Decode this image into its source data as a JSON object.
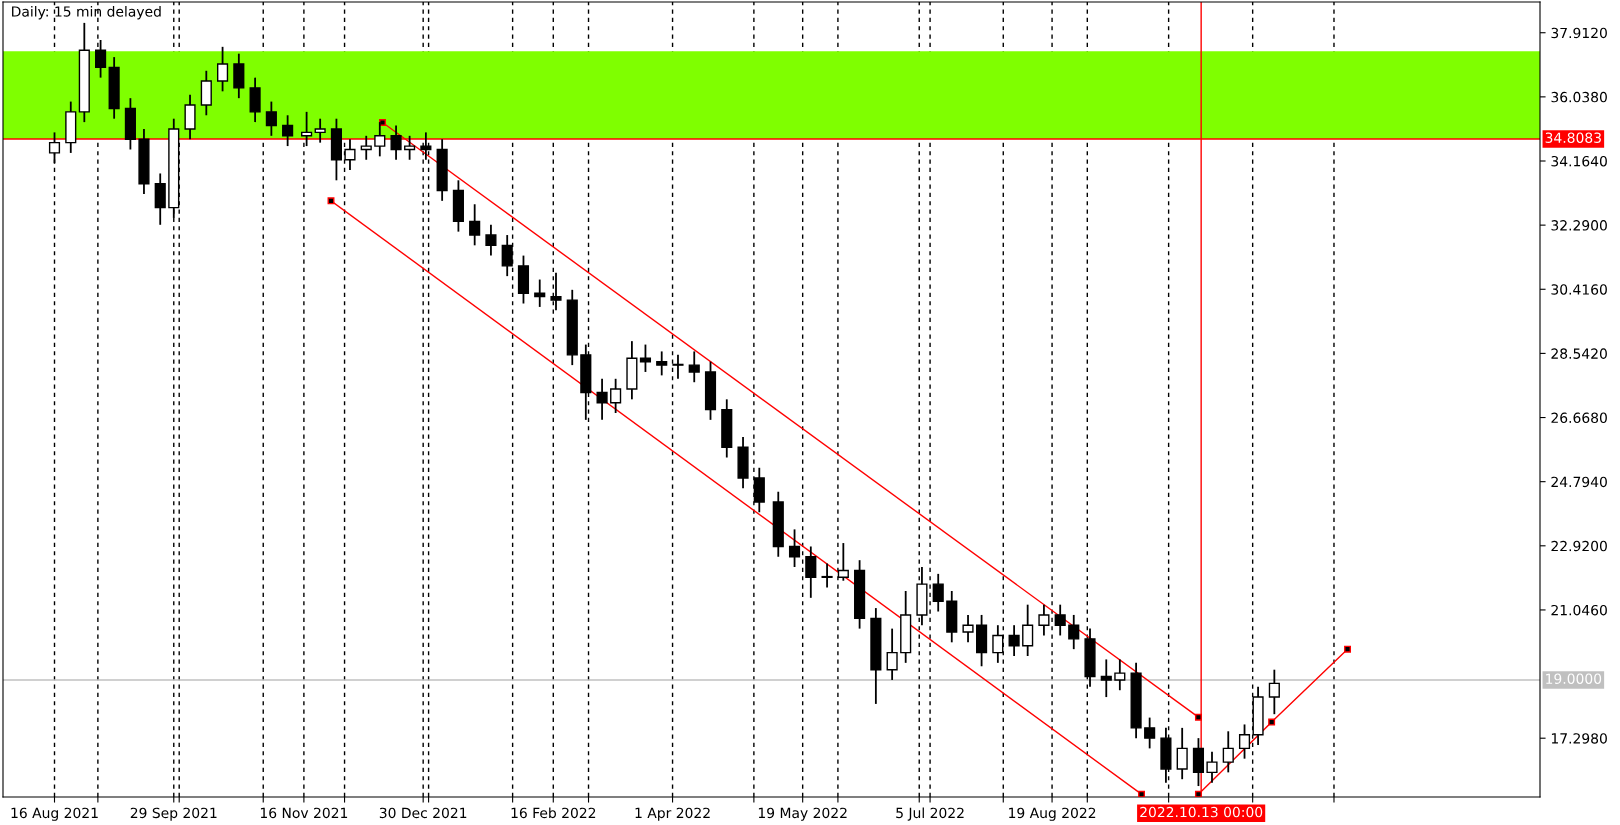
{
  "chart_data": {
    "type": "candlestick",
    "title": "Daily: 15 min delayed",
    "x": [
      "2021-08-16",
      "2021-08-22",
      "2021-08-27",
      "2021-09-02",
      "2021-09-07",
      "2021-09-13",
      "2021-09-18",
      "2021-09-24",
      "2021-09-29",
      "2021-10-05",
      "2021-10-11",
      "2021-10-17",
      "2021-10-23",
      "2021-10-29",
      "2021-11-04",
      "2021-11-10",
      "2021-11-17",
      "2021-11-22",
      "2021-11-28",
      "2021-12-03",
      "2021-12-09",
      "2021-12-14",
      "2021-12-20",
      "2021-12-25",
      "2021-12-31",
      "2022-01-06",
      "2022-01-12",
      "2022-01-18",
      "2022-01-24",
      "2022-01-30",
      "2022-02-05",
      "2022-02-11",
      "2022-02-17",
      "2022-02-23",
      "2022-02-28",
      "2022-03-06",
      "2022-03-11",
      "2022-03-17",
      "2022-03-22",
      "2022-03-28",
      "2022-04-03",
      "2022-04-09",
      "2022-04-15",
      "2022-04-21",
      "2022-04-27",
      "2022-05-03",
      "2022-05-10",
      "2022-05-16",
      "2022-05-22",
      "2022-05-28",
      "2022-06-03",
      "2022-06-09",
      "2022-06-15",
      "2022-06-21",
      "2022-06-26",
      "2022-07-02",
      "2022-07-08",
      "2022-07-13",
      "2022-07-19",
      "2022-07-24",
      "2022-07-30",
      "2022-08-05",
      "2022-08-10",
      "2022-08-16",
      "2022-08-22",
      "2022-08-27",
      "2022-09-02",
      "2022-09-08",
      "2022-09-13",
      "2022-09-19",
      "2022-09-24",
      "2022-09-30",
      "2022-10-06",
      "2022-10-12",
      "2022-10-17",
      "2022-10-23",
      "2022-10-29",
      "2022-11-03",
      "2022-11-09"
    ],
    "ohlc": [
      [
        34.4,
        35.0,
        34.1,
        34.7
      ],
      [
        34.7,
        35.9,
        34.4,
        35.6
      ],
      [
        35.6,
        38.2,
        35.3,
        37.4
      ],
      [
        37.4,
        37.7,
        36.6,
        36.9
      ],
      [
        36.9,
        37.2,
        35.4,
        35.7
      ],
      [
        35.7,
        36.0,
        34.5,
        34.8
      ],
      [
        34.8,
        35.1,
        33.2,
        33.5
      ],
      [
        33.5,
        33.8,
        32.3,
        32.8
      ],
      [
        32.8,
        35.4,
        32.5,
        35.1
      ],
      [
        35.1,
        36.1,
        34.8,
        35.8
      ],
      [
        35.8,
        36.8,
        35.5,
        36.5
      ],
      [
        36.5,
        37.5,
        36.2,
        37.0
      ],
      [
        37.0,
        37.3,
        36.0,
        36.3
      ],
      [
        36.3,
        36.6,
        35.3,
        35.6
      ],
      [
        35.6,
        35.9,
        34.9,
        35.2
      ],
      [
        35.2,
        35.5,
        34.6,
        34.9
      ],
      [
        34.9,
        35.6,
        34.6,
        35.0
      ],
      [
        35.0,
        35.4,
        34.7,
        35.1
      ],
      [
        35.1,
        35.4,
        33.6,
        34.2
      ],
      [
        34.2,
        34.8,
        33.9,
        34.5
      ],
      [
        34.5,
        34.9,
        34.2,
        34.6
      ],
      [
        34.6,
        35.3,
        34.3,
        34.9
      ],
      [
        34.9,
        35.2,
        34.2,
        34.5
      ],
      [
        34.5,
        34.9,
        34.2,
        34.6
      ],
      [
        34.6,
        35.0,
        34.2,
        34.5
      ],
      [
        34.5,
        34.8,
        33.0,
        33.3
      ],
      [
        33.3,
        33.6,
        32.1,
        32.4
      ],
      [
        32.4,
        32.9,
        31.7,
        32.0
      ],
      [
        32.0,
        32.3,
        31.4,
        31.7
      ],
      [
        31.7,
        32.0,
        30.8,
        31.1
      ],
      [
        31.1,
        31.4,
        30.0,
        30.3
      ],
      [
        30.3,
        30.7,
        29.9,
        30.2
      ],
      [
        30.2,
        30.9,
        29.8,
        30.1
      ],
      [
        30.1,
        30.4,
        28.2,
        28.5
      ],
      [
        28.5,
        28.8,
        26.6,
        27.4
      ],
      [
        27.4,
        27.8,
        26.6,
        27.1
      ],
      [
        27.1,
        27.8,
        26.8,
        27.5
      ],
      [
        27.5,
        28.9,
        27.2,
        28.4
      ],
      [
        28.4,
        28.8,
        28.0,
        28.3
      ],
      [
        28.3,
        28.6,
        27.9,
        28.2
      ],
      [
        28.2,
        28.5,
        27.8,
        28.2
      ],
      [
        28.2,
        28.6,
        27.7,
        28.0
      ],
      [
        28.0,
        28.3,
        26.6,
        26.9
      ],
      [
        26.9,
        27.2,
        25.5,
        25.8
      ],
      [
        25.8,
        26.1,
        24.6,
        24.9
      ],
      [
        24.9,
        25.2,
        23.9,
        24.2
      ],
      [
        24.2,
        24.5,
        22.6,
        22.9
      ],
      [
        22.9,
        23.4,
        22.3,
        22.6
      ],
      [
        22.6,
        22.9,
        21.4,
        22.0
      ],
      [
        22.0,
        22.4,
        21.7,
        22.0
      ],
      [
        22.0,
        23.0,
        21.9,
        22.2
      ],
      [
        22.2,
        22.5,
        20.5,
        20.8
      ],
      [
        20.8,
        21.1,
        18.3,
        19.3
      ],
      [
        19.3,
        20.5,
        19.0,
        19.8
      ],
      [
        19.8,
        21.6,
        19.5,
        20.9
      ],
      [
        20.9,
        22.3,
        20.6,
        21.8
      ],
      [
        21.8,
        22.1,
        21.0,
        21.3
      ],
      [
        21.3,
        21.6,
        20.1,
        20.4
      ],
      [
        20.4,
        20.9,
        20.1,
        20.6
      ],
      [
        20.6,
        20.9,
        19.4,
        19.8
      ],
      [
        19.8,
        20.6,
        19.5,
        20.3
      ],
      [
        20.3,
        20.6,
        19.7,
        20.0
      ],
      [
        20.0,
        21.2,
        19.7,
        20.6
      ],
      [
        20.6,
        21.2,
        20.3,
        20.9
      ],
      [
        20.9,
        21.2,
        20.3,
        20.6
      ],
      [
        20.6,
        20.9,
        19.9,
        20.2
      ],
      [
        20.2,
        20.5,
        18.8,
        19.1
      ],
      [
        19.1,
        19.6,
        18.5,
        19.0
      ],
      [
        19.0,
        19.6,
        18.7,
        19.2
      ],
      [
        19.2,
        19.5,
        17.3,
        17.6
      ],
      [
        17.6,
        17.9,
        17.0,
        17.3
      ],
      [
        17.3,
        17.6,
        16.0,
        16.4
      ],
      [
        16.4,
        17.6,
        16.1,
        17.0
      ],
      [
        17.0,
        17.3,
        15.9,
        16.3
      ],
      [
        16.3,
        16.9,
        16.0,
        16.6
      ],
      [
        16.6,
        17.5,
        16.3,
        17.0
      ],
      [
        17.0,
        17.7,
        16.7,
        17.4
      ],
      [
        17.4,
        18.8,
        17.1,
        18.5
      ],
      [
        18.5,
        19.3,
        18.0,
        18.9
      ]
    ],
    "series": [
      {
        "type": "line",
        "color": "#ff0000",
        "x": [
          "2021-12-15",
          "2022-10-12"
        ],
        "values": [
          35.29,
          17.91
        ],
        "marker": "square"
      },
      {
        "type": "line",
        "color": "#ff0000",
        "x": [
          "2021-11-26",
          "2022-09-21"
        ],
        "values": [
          33.0,
          15.66
        ],
        "marker": "square"
      },
      {
        "type": "line",
        "color": "#ff0000",
        "x": [
          "2022-10-12",
          "2022-11-08",
          "2022-12-06"
        ],
        "values": [
          15.66,
          17.77,
          19.9
        ],
        "marker": "square"
      }
    ],
    "bands": [
      {
        "axis": "y",
        "from": 34.8083,
        "to": 37.37,
        "color": "#7fff00"
      }
    ],
    "ref_lines": [
      {
        "axis": "y",
        "value": 34.8083,
        "label": "34.8083",
        "color": "#ff0000"
      },
      {
        "axis": "y",
        "value": 19.0,
        "label": "19.0000",
        "color": "#c0c0c0"
      },
      {
        "axis": "x",
        "value": "2022-10-13",
        "label": "2022.10.13 00:00",
        "color": "#ff0000"
      }
    ],
    "xlim": [
      "2021-07-28",
      "2023-02-15"
    ],
    "ylim": [
      15.58,
      38.81
    ],
    "xticks": [
      {
        "value": "2021-08-16",
        "label": "16 Aug 2021"
      },
      {
        "value": "2021-09-01",
        "label": null
      },
      {
        "value": "2021-09-29",
        "label": "29 Sep 2021"
      },
      {
        "value": "2021-10-01",
        "label": null
      },
      {
        "value": "2021-11-01",
        "label": null
      },
      {
        "value": "2021-11-16",
        "label": "16 Nov 2021"
      },
      {
        "value": "2021-12-01",
        "label": null
      },
      {
        "value": "2021-12-30",
        "label": "30 Dec 2021"
      },
      {
        "value": "2022-01-01",
        "label": null
      },
      {
        "value": "2022-02-01",
        "label": null
      },
      {
        "value": "2022-02-16",
        "label": "16 Feb 2022"
      },
      {
        "value": "2022-03-01",
        "label": null
      },
      {
        "value": "2022-04-01",
        "label": "1 Apr 2022"
      },
      {
        "value": "2022-05-01",
        "label": null
      },
      {
        "value": "2022-05-19",
        "label": "19 May 2022"
      },
      {
        "value": "2022-06-01",
        "label": null
      },
      {
        "value": "2022-07-01",
        "label": null
      },
      {
        "value": "2022-07-05",
        "label": "5 Jul 2022"
      },
      {
        "value": "2022-08-01",
        "label": null
      },
      {
        "value": "2022-08-19",
        "label": "19 Aug 2022"
      },
      {
        "value": "2022-09-01",
        "label": null
      },
      {
        "value": "2022-10-01",
        "label": null
      },
      {
        "value": "2022-11-01",
        "label": null
      },
      {
        "value": "2022-12-01",
        "label": null
      }
    ],
    "yticks": [
      {
        "value": 17.298,
        "label": "17.2980"
      },
      {
        "value": 21.046,
        "label": "21.0460"
      },
      {
        "value": 22.92,
        "label": "22.9200"
      },
      {
        "value": 24.794,
        "label": "24.7940"
      },
      {
        "value": 26.668,
        "label": "26.6680"
      },
      {
        "value": 28.542,
        "label": "28.5420"
      },
      {
        "value": 30.416,
        "label": "30.4160"
      },
      {
        "value": 32.29,
        "label": "32.2900"
      },
      {
        "value": 34.164,
        "label": "34.1640"
      },
      {
        "value": 36.038,
        "label": "36.0380"
      },
      {
        "value": 37.912,
        "label": "37.9120"
      }
    ],
    "grid": "x"
  }
}
